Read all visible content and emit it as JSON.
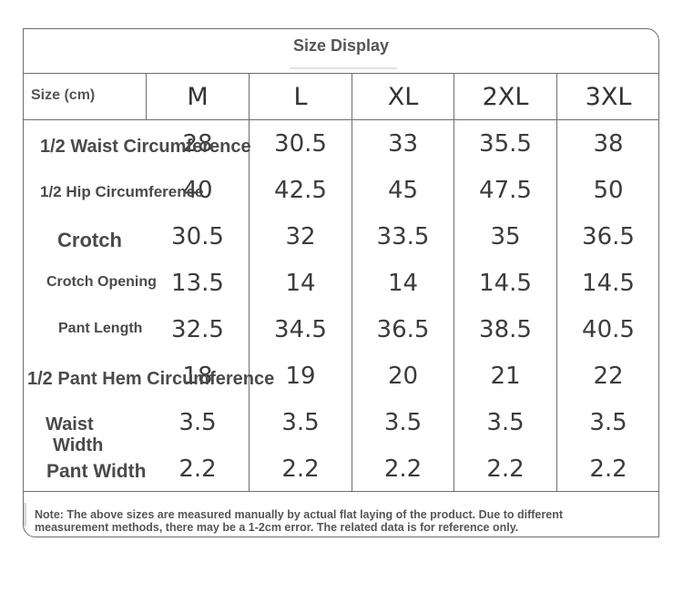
{
  "title": "Size Display",
  "header": {
    "size_label": "Size (cm)",
    "sizes": [
      "M",
      "L",
      "XL",
      "2XL",
      "3XL"
    ]
  },
  "rows": [
    {
      "label": "1/2 Waist Circumference",
      "values": [
        "28",
        "30.5",
        "33",
        "35.5",
        "38"
      ]
    },
    {
      "label": "1/2 Hip Circumference",
      "values": [
        "40",
        "42.5",
        "45",
        "47.5",
        "50"
      ]
    },
    {
      "label": "Crotch",
      "values": [
        "30.5",
        "32",
        "33.5",
        "35",
        "36.5"
      ]
    },
    {
      "label": "Crotch Opening",
      "values": [
        "13.5",
        "14",
        "14",
        "14.5",
        "14.5"
      ]
    },
    {
      "label": "Pant Length",
      "values": [
        "32.5",
        "34.5",
        "36.5",
        "38.5",
        "40.5"
      ]
    },
    {
      "label": "1/2 Pant Hem Circumference",
      "values": [
        "18",
        "19",
        "20",
        "21",
        "22"
      ]
    },
    {
      "label_line1": "Waist",
      "label_line2": "Width",
      "values": [
        "3.5",
        "3.5",
        "3.5",
        "3.5",
        "3.5"
      ]
    },
    {
      "label": "Pant Width",
      "values": [
        "2.2",
        "2.2",
        "2.2",
        "2.2",
        "2.2"
      ]
    }
  ],
  "note": {
    "line1": "Note: The above sizes are measured manually by actual flat laying of the product. Due to different",
    "line2": "measurement methods, there may be a 1-2cm error. The related data is for reference only."
  }
}
